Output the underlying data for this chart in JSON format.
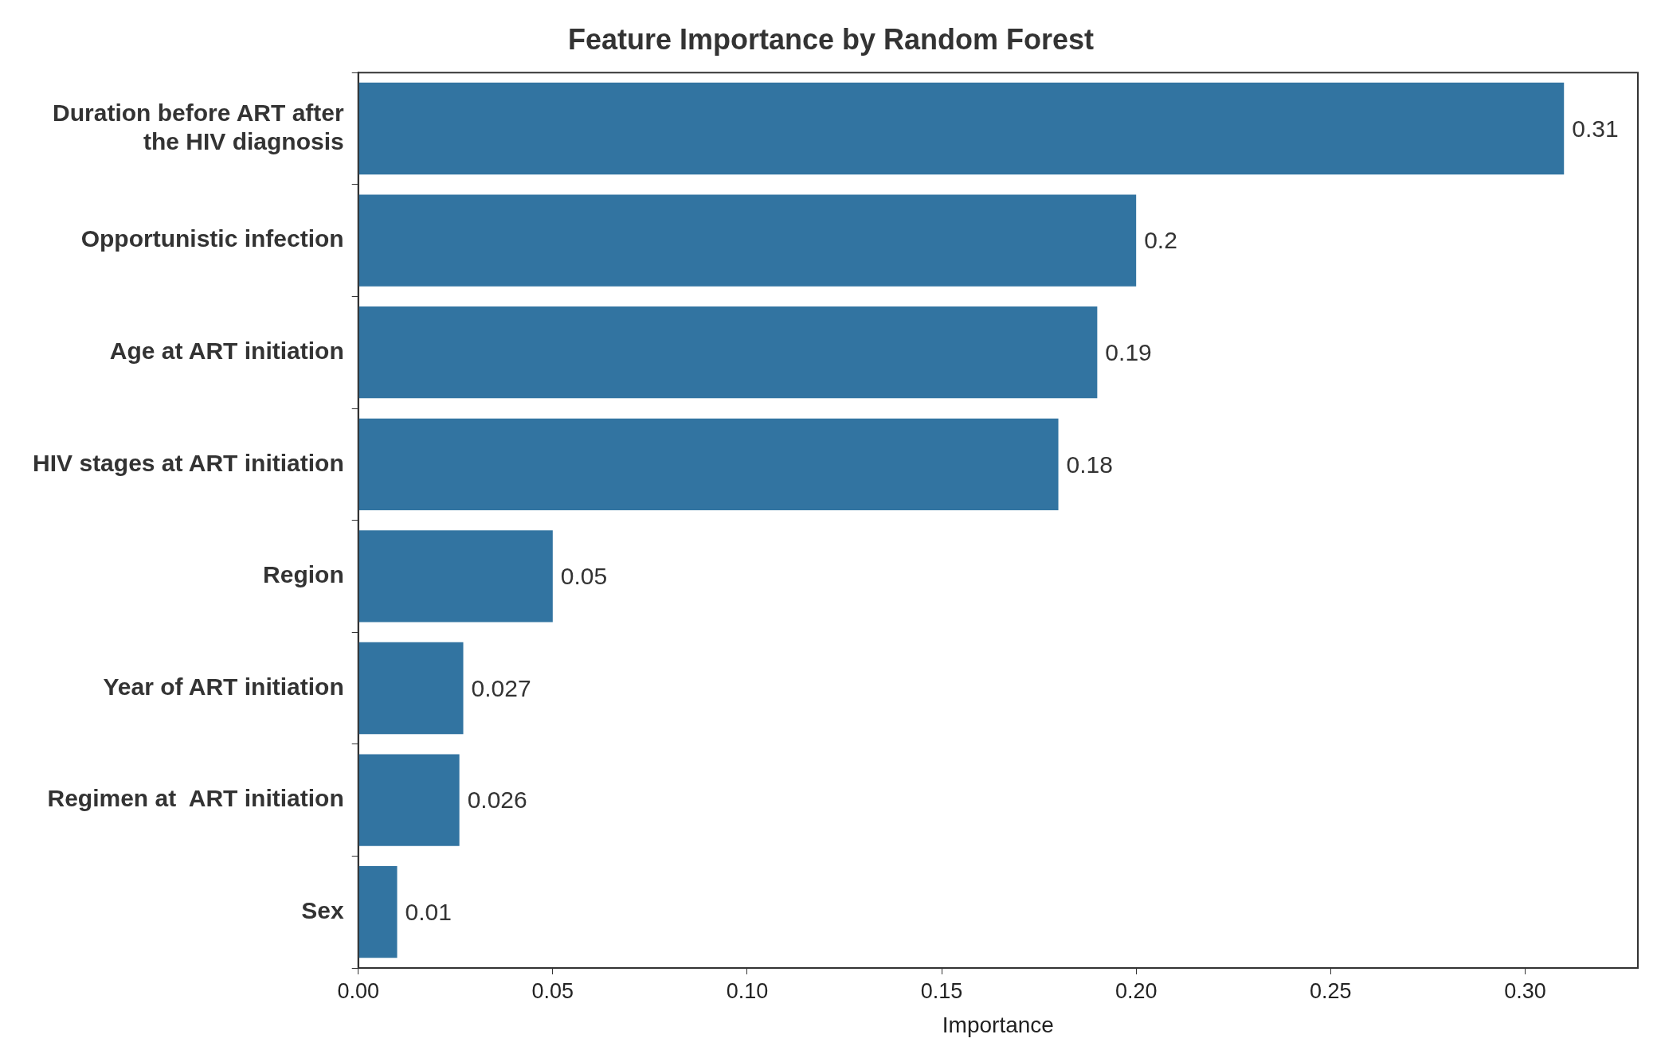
{
  "chart_data": {
    "type": "bar",
    "orientation": "horizontal",
    "title": "Feature Importance by Random Forest",
    "xlabel": "Importance",
    "categories": [
      "Duration before ART after the HIV diagnosis",
      "Opportunistic infection",
      "Age at ART initiation",
      "HIV stages at ART initiation",
      "Region",
      "Year of ART initiation",
      "Regimen at  ART initiation",
      "Sex"
    ],
    "values": [
      0.31,
      0.2,
      0.19,
      0.18,
      0.05,
      0.027,
      0.026,
      0.01
    ],
    "color": "#3274a1",
    "xlim": [
      0,
      0.329
    ],
    "xticks": [
      {
        "value": 0,
        "label": "0.00"
      },
      {
        "value": 0.05,
        "label": "0.05"
      },
      {
        "value": 0.1,
        "label": "0.10"
      },
      {
        "value": 0.15,
        "label": "0.15"
      },
      {
        "value": 0.2,
        "label": "0.20"
      },
      {
        "value": 0.25,
        "label": "0.25"
      },
      {
        "value": 0.3,
        "label": "0.30"
      }
    ],
    "data_labels": true,
    "grid": false,
    "legend": false
  }
}
